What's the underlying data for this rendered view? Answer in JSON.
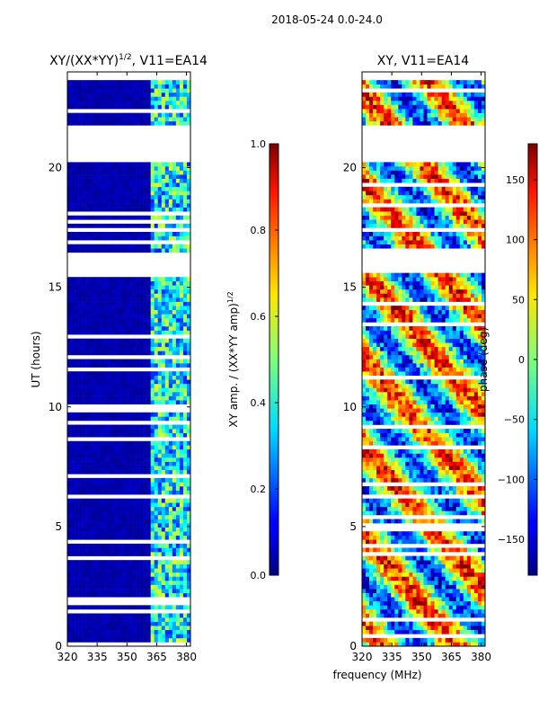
{
  "suptitle": "2018-05-24 0.0-24.0",
  "xlabel": "frequency (MHz)",
  "chart_data": [
    {
      "type": "heatmap",
      "title": "XY/(XX*YY)^1/2, V11=EA14",
      "title_main": "XY/(XX*YY)",
      "title_sup": "1/2",
      "title_tail": ", V11=EA14",
      "ylabel": "UT (hours)",
      "xlim": [
        320,
        382
      ],
      "ylim": [
        0,
        24
      ],
      "xticks": [
        "320",
        "335",
        "350",
        "365",
        "380"
      ],
      "xtick_values": [
        320,
        335,
        350,
        365,
        380
      ],
      "yticks": [
        "0",
        "5",
        "10",
        "15",
        "20"
      ],
      "ytick_values": [
        0,
        5,
        10,
        15,
        20
      ],
      "colorbar": {
        "label": "XY amp. / (XX*YY amp)^1/2",
        "label_main": "XY amp. / (XX*YY amp)",
        "label_sup": "1/2",
        "range": [
          0.0,
          1.0
        ],
        "ticks": [
          "0.0",
          "0.2",
          "0.4",
          "0.6",
          "0.8",
          "1.0"
        ],
        "tick_values": [
          0.0,
          0.2,
          0.4,
          0.6,
          0.8,
          1.0
        ]
      }
    },
    {
      "type": "heatmap",
      "title": "XY, V11=EA14",
      "xlim": [
        320,
        382
      ],
      "ylim": [
        0,
        24
      ],
      "xticks": [
        "320",
        "335",
        "350",
        "365",
        "380"
      ],
      "xtick_values": [
        320,
        335,
        350,
        365,
        380
      ],
      "yticks": [
        "0",
        "5",
        "10",
        "15",
        "20"
      ],
      "ytick_values": [
        0,
        5,
        10,
        15,
        20
      ],
      "colorbar": {
        "label": "phase (deg)",
        "range": [
          -180,
          180
        ],
        "ticks": [
          "−150",
          "−100",
          "−50",
          "0",
          "50",
          "100",
          "150"
        ],
        "tick_values": [
          -150,
          -100,
          -50,
          0,
          50,
          100,
          150
        ]
      }
    }
  ]
}
